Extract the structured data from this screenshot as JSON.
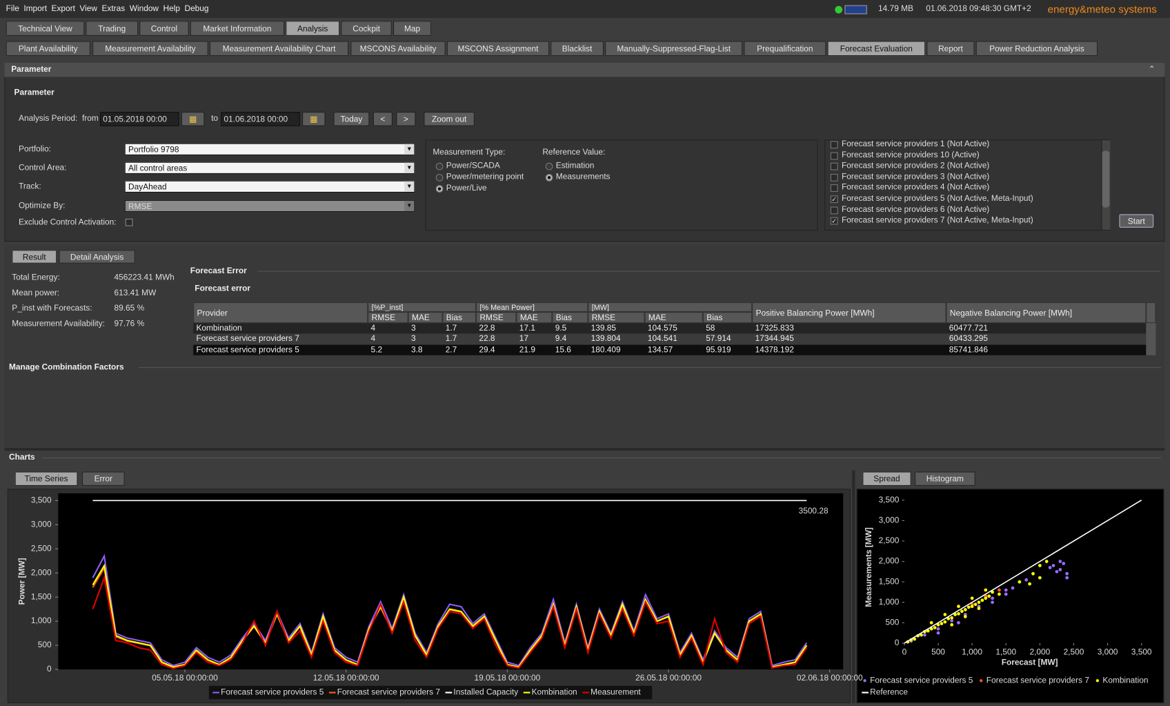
{
  "menu": [
    "File",
    "Import",
    "Export",
    "View",
    "Extras",
    "Window",
    "Help",
    "Debug"
  ],
  "status": {
    "memory": "14.79 MB",
    "datetime": "01.06.2018 09:48:30 GMT+2",
    "brand": "energy&meteo systems"
  },
  "main_tabs": {
    "items": [
      "Technical View",
      "Trading",
      "Control",
      "Market Information",
      "Analysis",
      "Cockpit",
      "Map"
    ],
    "selected": 4
  },
  "sub_tabs": {
    "items": [
      "Plant Availability",
      "Measurement Availability",
      "Measurement Availability Chart",
      "MSCONS Availability",
      "MSCONS Assignment",
      "Blacklist",
      "Manually-Suppressed-Flag-List",
      "Prequalification",
      "Forecast Evaluation",
      "Report",
      "Power Reduction Analysis"
    ],
    "selected": 8
  },
  "parameter": {
    "header": "Parameter",
    "title": "Parameter",
    "period_label": "Analysis Period:",
    "from_label": "from",
    "from": "01.05.2018 00:00",
    "to_label": "to",
    "to": "01.06.2018 00:00",
    "buttons": [
      "Today",
      "<",
      ">",
      "Zoom out"
    ],
    "fields": [
      {
        "label": "Portfolio:",
        "value": "Portfolio 9798"
      },
      {
        "label": "Control Area:",
        "value": "All control areas"
      },
      {
        "label": "Track:",
        "value": "DayAhead"
      },
      {
        "label": "Optimize By:",
        "value": "RMSE"
      }
    ],
    "exclude_label": "Exclude Control Activation:",
    "exclude_checked": false,
    "measurement_type": {
      "label": "Measurement Type:",
      "options": [
        "Power/SCADA",
        "Power/metering point",
        "Power/Live"
      ],
      "selected": 2
    },
    "reference_value": {
      "label": "Reference Value:",
      "options": [
        "Estimation",
        "Measurements"
      ],
      "selected": 1
    },
    "providers": [
      {
        "label": "Forecast service providers 1 (Not Active)",
        "checked": false
      },
      {
        "label": "Forecast service providers 10 (Active)",
        "checked": false
      },
      {
        "label": "Forecast service providers 2 (Not Active)",
        "checked": false
      },
      {
        "label": "Forecast service providers 3 (Not Active)",
        "checked": false
      },
      {
        "label": "Forecast service providers 4 (Not Active)",
        "checked": false
      },
      {
        "label": "Forecast service providers 5 (Not Active, Meta-Input)",
        "checked": true
      },
      {
        "label": "Forecast service providers 6 (Not Active)",
        "checked": false
      },
      {
        "label": "Forecast service providers 7 (Not Active, Meta-Input)",
        "checked": true
      }
    ],
    "start": "Start"
  },
  "result_tabs": {
    "items": [
      "Result",
      "Detail Analysis"
    ],
    "selected": 0
  },
  "stats": [
    {
      "label": "Total Energy:",
      "value": "456223.41 MWh"
    },
    {
      "label": "Mean power:",
      "value": "613.41 MW"
    },
    {
      "label": "P_inst with Forecasts:",
      "value": "89.65 %"
    },
    {
      "label": "Measurement Availability:",
      "value": "97.76 %"
    }
  ],
  "forecast_error_header": "Forecast Error",
  "forecast_table": {
    "title": "Forecast error",
    "provider_header": "Provider",
    "groups": [
      "[%P_inst]",
      "[% Mean Power]",
      "[MW]"
    ],
    "metric_headers": [
      "RMSE",
      "MAE",
      "Bias",
      "RMSE",
      "MAE",
      "Bias",
      "RMSE",
      "MAE",
      "Bias"
    ],
    "balance_headers": [
      "Positive Balancing Power [MWh]",
      "Negative Balancing Power [MWh]"
    ],
    "rows": [
      [
        "Kombination",
        "4",
        "3",
        "1.7",
        "22.8",
        "17.1",
        "9.5",
        "139.85",
        "104.575",
        "58",
        "17325.833",
        "60477.721"
      ],
      [
        "Forecast service providers 7",
        "4",
        "3",
        "1.7",
        "22.8",
        "17",
        "9.4",
        "139.804",
        "104.541",
        "57.914",
        "17344.945",
        "60433.295"
      ],
      [
        "Forecast service providers 5",
        "5.2",
        "3.8",
        "2.7",
        "29.4",
        "21.9",
        "15.6",
        "180.409",
        "134.57",
        "95.919",
        "14378.192",
        "85741.846"
      ]
    ]
  },
  "manage_title": "Manage Combination Factors",
  "charts_header": "Charts",
  "chart_tabs_left": {
    "items": [
      "Time Series",
      "Error"
    ],
    "selected": 0
  },
  "chart_tabs_right": {
    "items": [
      "Spread",
      "Histogram"
    ],
    "selected": 0
  },
  "chart_data": [
    {
      "type": "line",
      "y_label": "Power [MW]",
      "annotation": "3500.28",
      "xlim": [
        "29.04.18 12:00:00",
        "02.06.18 14:00:00"
      ],
      "xticks": [
        "05.05.18 00:00:00",
        "12.05.18 00:00:00",
        "19.05.18 00:00:00",
        "26.05.18 00:00:00",
        "02.06.18 00:00:00"
      ],
      "ylim": [
        0,
        3650
      ],
      "yticks": [
        0,
        500,
        {
          "value": 1000,
          "label": "1,000"
        },
        {
          "value": 1500,
          "label": "1,500"
        },
        {
          "value": 2000,
          "label": "2,000"
        },
        {
          "value": 2500,
          "label": "2,500"
        },
        {
          "value": 3000,
          "label": "3,000"
        },
        {
          "value": 3500,
          "label": "3,500"
        }
      ],
      "grid": false,
      "x": [
        "01.05.18 00:00:00",
        "01.05.18 12:00:00",
        "02.05.18 00:00:00",
        "02.05.18 12:00:00",
        "03.05.18 00:00:00",
        "03.05.18 12:00:00",
        "04.05.18 00:00:00",
        "04.05.18 12:00:00",
        "05.05.18 00:00:00",
        "05.05.18 12:00:00",
        "06.05.18 00:00:00",
        "06.05.18 12:00:00",
        "07.05.18 00:00:00",
        "07.05.18 12:00:00",
        "08.05.18 00:00:00",
        "08.05.18 12:00:00",
        "09.05.18 00:00:00",
        "09.05.18 12:00:00",
        "10.05.18 00:00:00",
        "10.05.18 12:00:00",
        "11.05.18 00:00:00",
        "11.05.18 12:00:00",
        "12.05.18 00:00:00",
        "12.05.18 12:00:00",
        "13.05.18 00:00:00",
        "13.05.18 12:00:00",
        "14.05.18 00:00:00",
        "14.05.18 12:00:00",
        "15.05.18 00:00:00",
        "15.05.18 12:00:00",
        "16.05.18 00:00:00",
        "16.05.18 12:00:00",
        "17.05.18 00:00:00",
        "17.05.18 12:00:00",
        "18.05.18 00:00:00",
        "18.05.18 12:00:00",
        "19.05.18 00:00:00",
        "19.05.18 12:00:00",
        "20.05.18 00:00:00",
        "20.05.18 12:00:00",
        "21.05.18 00:00:00",
        "21.05.18 12:00:00",
        "22.05.18 00:00:00",
        "22.05.18 12:00:00",
        "23.05.18 00:00:00",
        "23.05.18 12:00:00",
        "24.05.18 00:00:00",
        "24.05.18 12:00:00",
        "25.05.18 00:00:00",
        "25.05.18 12:00:00",
        "26.05.18 00:00:00",
        "26.05.18 12:00:00",
        "27.05.18 00:00:00",
        "27.05.18 12:00:00",
        "28.05.18 00:00:00",
        "28.05.18 12:00:00",
        "29.05.18 00:00:00",
        "29.05.18 12:00:00",
        "30.05.18 00:00:00",
        "30.05.18 12:00:00",
        "31.05.18 00:00:00",
        "31.05.18 12:00:00",
        "01.06.18 00:00:00"
      ],
      "series": [
        {
          "name": "Forecast service providers 5",
          "color": "#8b5cf6",
          "values": [
            1900,
            2350,
            750,
            650,
            600,
            550,
            200,
            80,
            150,
            450,
            250,
            150,
            300,
            650,
            950,
            600,
            1200,
            650,
            950,
            350,
            1150,
            450,
            250,
            150,
            900,
            1400,
            850,
            1550,
            750,
            350,
            950,
            1350,
            1300,
            950,
            1150,
            650,
            150,
            80,
            450,
            750,
            1450,
            550,
            1350,
            450,
            1250,
            750,
            1400,
            800,
            1550,
            1050,
            1150,
            350,
            750,
            200,
            800,
            450,
            250,
            1050,
            1200,
            80,
            150,
            200,
            550
          ]
        },
        {
          "name": "Forecast service providers 7",
          "color": "#ff5a1e",
          "values": [
            1700,
            2100,
            680,
            590,
            540,
            490,
            140,
            45,
            95,
            390,
            195,
            95,
            245,
            590,
            890,
            545,
            1140,
            590,
            890,
            295,
            1090,
            395,
            195,
            95,
            840,
            1290,
            790,
            1490,
            690,
            295,
            890,
            1240,
            1190,
            890,
            1090,
            590,
            95,
            45,
            390,
            690,
            1340,
            495,
            1290,
            395,
            1190,
            690,
            1340,
            745,
            1440,
            995,
            1090,
            295,
            690,
            145,
            745,
            395,
            195,
            995,
            1140,
            45,
            95,
            145,
            495
          ]
        },
        {
          "name": "Installed Capacity",
          "color": "#ffffff",
          "values": [
            3500.28,
            3500.28,
            3500.28,
            3500.28,
            3500.28,
            3500.28,
            3500.28,
            3500.28,
            3500.28,
            3500.28,
            3500.28,
            3500.28,
            3500.28,
            3500.28,
            3500.28,
            3500.28,
            3500.28,
            3500.28,
            3500.28,
            3500.28,
            3500.28,
            3500.28,
            3500.28,
            3500.28,
            3500.28,
            3500.28,
            3500.28,
            3500.28,
            3500.28,
            3500.28,
            3500.28,
            3500.28,
            3500.28,
            3500.28,
            3500.28,
            3500.28,
            3500.28,
            3500.28,
            3500.28,
            3500.28,
            3500.28,
            3500.28,
            3500.28,
            3500.28,
            3500.28,
            3500.28,
            3500.28,
            3500.28,
            3500.28,
            3500.28,
            3500.28,
            3500.28,
            3500.28,
            3500.28,
            3500.28,
            3500.28,
            3500.28,
            3500.28,
            3500.28,
            3500.28,
            3500.28,
            3500.28,
            3500.28
          ]
        },
        {
          "name": "Kombination",
          "color": "#ffff00",
          "values": [
            1750,
            2150,
            700,
            600,
            550,
            500,
            150,
            50,
            100,
            400,
            200,
            100,
            250,
            600,
            900,
            550,
            1150,
            600,
            900,
            300,
            1100,
            400,
            200,
            100,
            850,
            1300,
            800,
            1500,
            700,
            300,
            900,
            1250,
            1200,
            900,
            1100,
            600,
            100,
            50,
            400,
            700,
            1350,
            500,
            1300,
            400,
            1200,
            700,
            1350,
            750,
            1450,
            1000,
            1100,
            300,
            700,
            150,
            750,
            400,
            200,
            1000,
            1150,
            50,
            100,
            150,
            500
          ]
        },
        {
          "name": "Measurement",
          "color": "#e00000",
          "values": [
            1250,
            1900,
            600,
            550,
            450,
            400,
            100,
            20,
            80,
            350,
            150,
            80,
            200,
            550,
            1000,
            500,
            1200,
            550,
            800,
            250,
            1000,
            350,
            150,
            80,
            800,
            1350,
            750,
            1400,
            600,
            250,
            850,
            1200,
            1150,
            850,
            1050,
            500,
            80,
            30,
            350,
            650,
            1300,
            450,
            1250,
            350,
            1150,
            650,
            1250,
            700,
            1400,
            950,
            1000,
            250,
            650,
            100,
            1050,
            350,
            150,
            950,
            1100,
            30,
            80,
            100,
            450
          ]
        }
      ]
    },
    {
      "type": "scatter",
      "x_label": "Forecast [MW]",
      "y_label": "Measurements [MW]",
      "xlim": [
        0,
        3700
      ],
      "ylim": [
        -150,
        3650
      ],
      "xticks": [
        0,
        500,
        {
          "value": 1000,
          "label": "1,000"
        },
        {
          "value": 1500,
          "label": "1,500"
        },
        {
          "value": 2000,
          "label": "2,000"
        },
        {
          "value": 2500,
          "label": "2,500"
        },
        {
          "value": 3000,
          "label": "3,000"
        },
        {
          "value": 3500,
          "label": "3,500"
        }
      ],
      "yticks": [
        0,
        500,
        {
          "value": 1000,
          "label": "1,000"
        },
        {
          "value": 1500,
          "label": "1,500"
        },
        {
          "value": 2000,
          "label": "2,000"
        },
        {
          "value": 2500,
          "label": "2,500"
        },
        {
          "value": 3000,
          "label": "3,000"
        },
        {
          "value": 3500,
          "label": "3,500"
        }
      ],
      "series": [
        {
          "name": "Forecast service providers 5",
          "color": "#9b6cff",
          "x": [
            100,
            300,
            500,
            700,
            900,
            1100,
            1300,
            1500,
            1300,
            1500,
            2200,
            2300,
            2400,
            2350,
            2250,
            2400,
            2300,
            2150,
            1800,
            1600,
            500,
            800
          ],
          "values": [
            50,
            200,
            350,
            550,
            700,
            900,
            1100,
            1300,
            1000,
            1200,
            1900,
            1800,
            1700,
            1950,
            1750,
            1600,
            2000,
            1850,
            1550,
            1350,
            250,
            500
          ]
        },
        {
          "name": "Forecast service providers 7",
          "color": "#ff5a1e",
          "x": [
            1000,
            1200,
            1400
          ],
          "values": [
            950,
            1150,
            1300
          ]
        },
        {
          "name": "Kombination",
          "color": "#ffff00",
          "x": [
            50,
            100,
            150,
            200,
            250,
            300,
            350,
            400,
            450,
            500,
            550,
            600,
            650,
            700,
            750,
            800,
            850,
            900,
            950,
            1000,
            1050,
            1100,
            1150,
            1200,
            1250,
            1300,
            1400,
            1700,
            1900,
            2000,
            2100,
            2000,
            1850,
            600,
            400,
            800,
            1000,
            1200,
            700,
            900,
            1100
          ],
          "values": [
            30,
            80,
            100,
            180,
            200,
            280,
            300,
            350,
            380,
            450,
            480,
            520,
            600,
            620,
            700,
            720,
            780,
            820,
            880,
            900,
            950,
            1000,
            1050,
            1100,
            1150,
            1250,
            1200,
            1500,
            1700,
            1900,
            2000,
            1600,
            1450,
            700,
            500,
            900,
            1100,
            1300,
            450,
            650,
            850
          ]
        },
        {
          "name": "Reference",
          "color": "#ffffff",
          "type": "line",
          "x": [
            0,
            3500
          ],
          "values": [
            0,
            3500
          ]
        }
      ]
    }
  ]
}
